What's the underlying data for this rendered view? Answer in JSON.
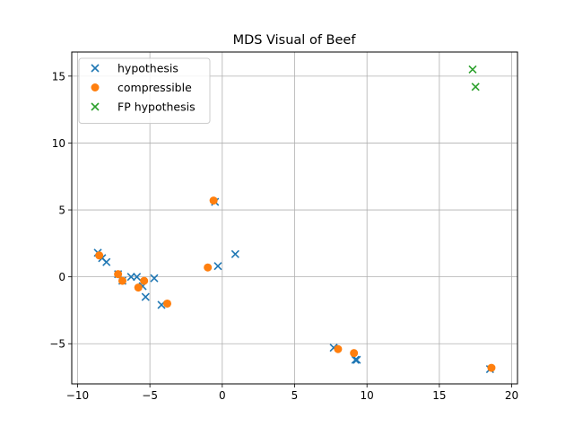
{
  "chart_data": {
    "type": "scatter",
    "title": "MDS Visual of Beef",
    "xlabel": "",
    "ylabel": "",
    "xlim": [
      -10.4,
      20.4
    ],
    "ylim": [
      -8.0,
      16.8
    ],
    "xticks": [
      -10,
      -5,
      0,
      5,
      10,
      15,
      20
    ],
    "yticks": [
      -5,
      0,
      5,
      10,
      15
    ],
    "grid": true,
    "legend_position": "top-left",
    "series": [
      {
        "name": "hypothesis",
        "marker": "x",
        "color": "#1f77b4",
        "points": [
          [
            -8.6,
            1.8
          ],
          [
            -8.3,
            1.4
          ],
          [
            -8.0,
            1.1
          ],
          [
            -7.2,
            0.2
          ],
          [
            -6.9,
            -0.3
          ],
          [
            -6.3,
            0.0
          ],
          [
            -5.9,
            0.0
          ],
          [
            -5.5,
            -0.7
          ],
          [
            -5.3,
            -1.5
          ],
          [
            -4.7,
            -0.1
          ],
          [
            -4.2,
            -2.1
          ],
          [
            -0.5,
            5.6
          ],
          [
            -0.3,
            0.8
          ],
          [
            0.9,
            1.7
          ],
          [
            7.7,
            -5.3
          ],
          [
            9.2,
            -6.2
          ],
          [
            9.3,
            -6.2
          ],
          [
            18.5,
            -6.9
          ]
        ]
      },
      {
        "name": "compressible",
        "marker": "o",
        "color": "#ff7f0e",
        "points": [
          [
            -8.5,
            1.6
          ],
          [
            -7.2,
            0.2
          ],
          [
            -6.9,
            -0.3
          ],
          [
            -5.8,
            -0.8
          ],
          [
            -5.4,
            -0.3
          ],
          [
            -3.8,
            -2.0
          ],
          [
            -1.0,
            0.7
          ],
          [
            -0.6,
            5.7
          ],
          [
            8.0,
            -5.4
          ],
          [
            9.1,
            -5.7
          ],
          [
            18.6,
            -6.8
          ]
        ]
      },
      {
        "name": "FP hypothesis",
        "marker": "x",
        "color": "#2ca02c",
        "points": [
          [
            17.3,
            15.5
          ],
          [
            17.5,
            14.2
          ]
        ]
      }
    ]
  }
}
